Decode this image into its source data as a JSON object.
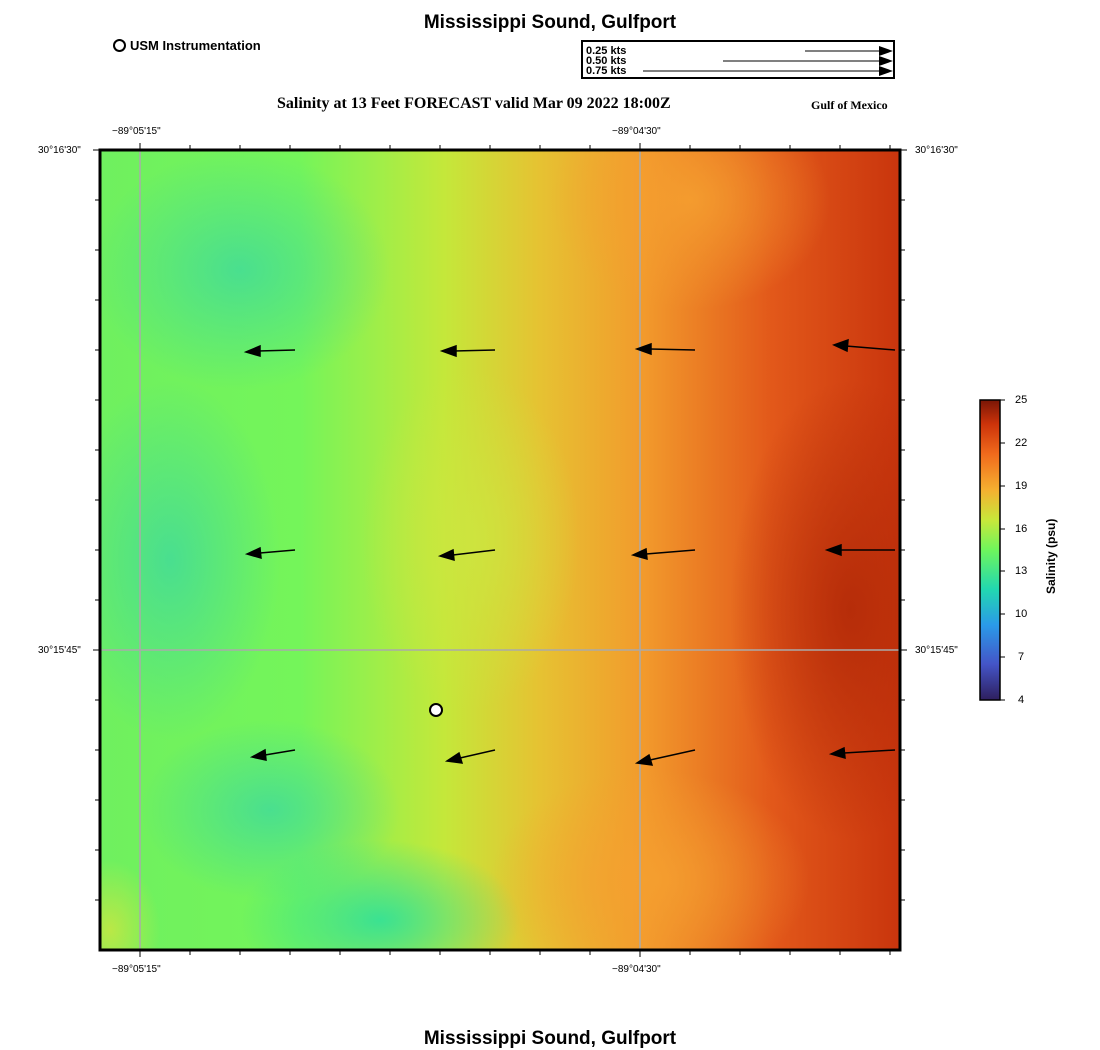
{
  "header": {
    "title": "Mississippi Sound, Gulfport",
    "subtitle": "Salinity at 13 Feet FORECAST valid Mar 09 2022 18:00Z",
    "region": "Gulf of Mexico"
  },
  "footer": {
    "title": "Mississippi Sound, Gulfport"
  },
  "station_legend": {
    "label": "USM Instrumentation"
  },
  "current_scale": {
    "labels": [
      "0.25 kts",
      "0.50 kts",
      "0.75 kts"
    ]
  },
  "axes": {
    "lon_ticks": [
      "−89°05'15\"",
      "−89°04'30\""
    ],
    "lat_ticks": [
      "30°16'30\"",
      "30°15'45\""
    ]
  },
  "colorbar": {
    "title": "Salinity (psu)",
    "ticks": [
      "25",
      "22",
      "19",
      "16",
      "13",
      "10",
      "7",
      "4"
    ]
  },
  "colors": {
    "fresh": "#2e2a8a",
    "mid": "#6ef55c",
    "salty": "#b52a0c"
  }
}
